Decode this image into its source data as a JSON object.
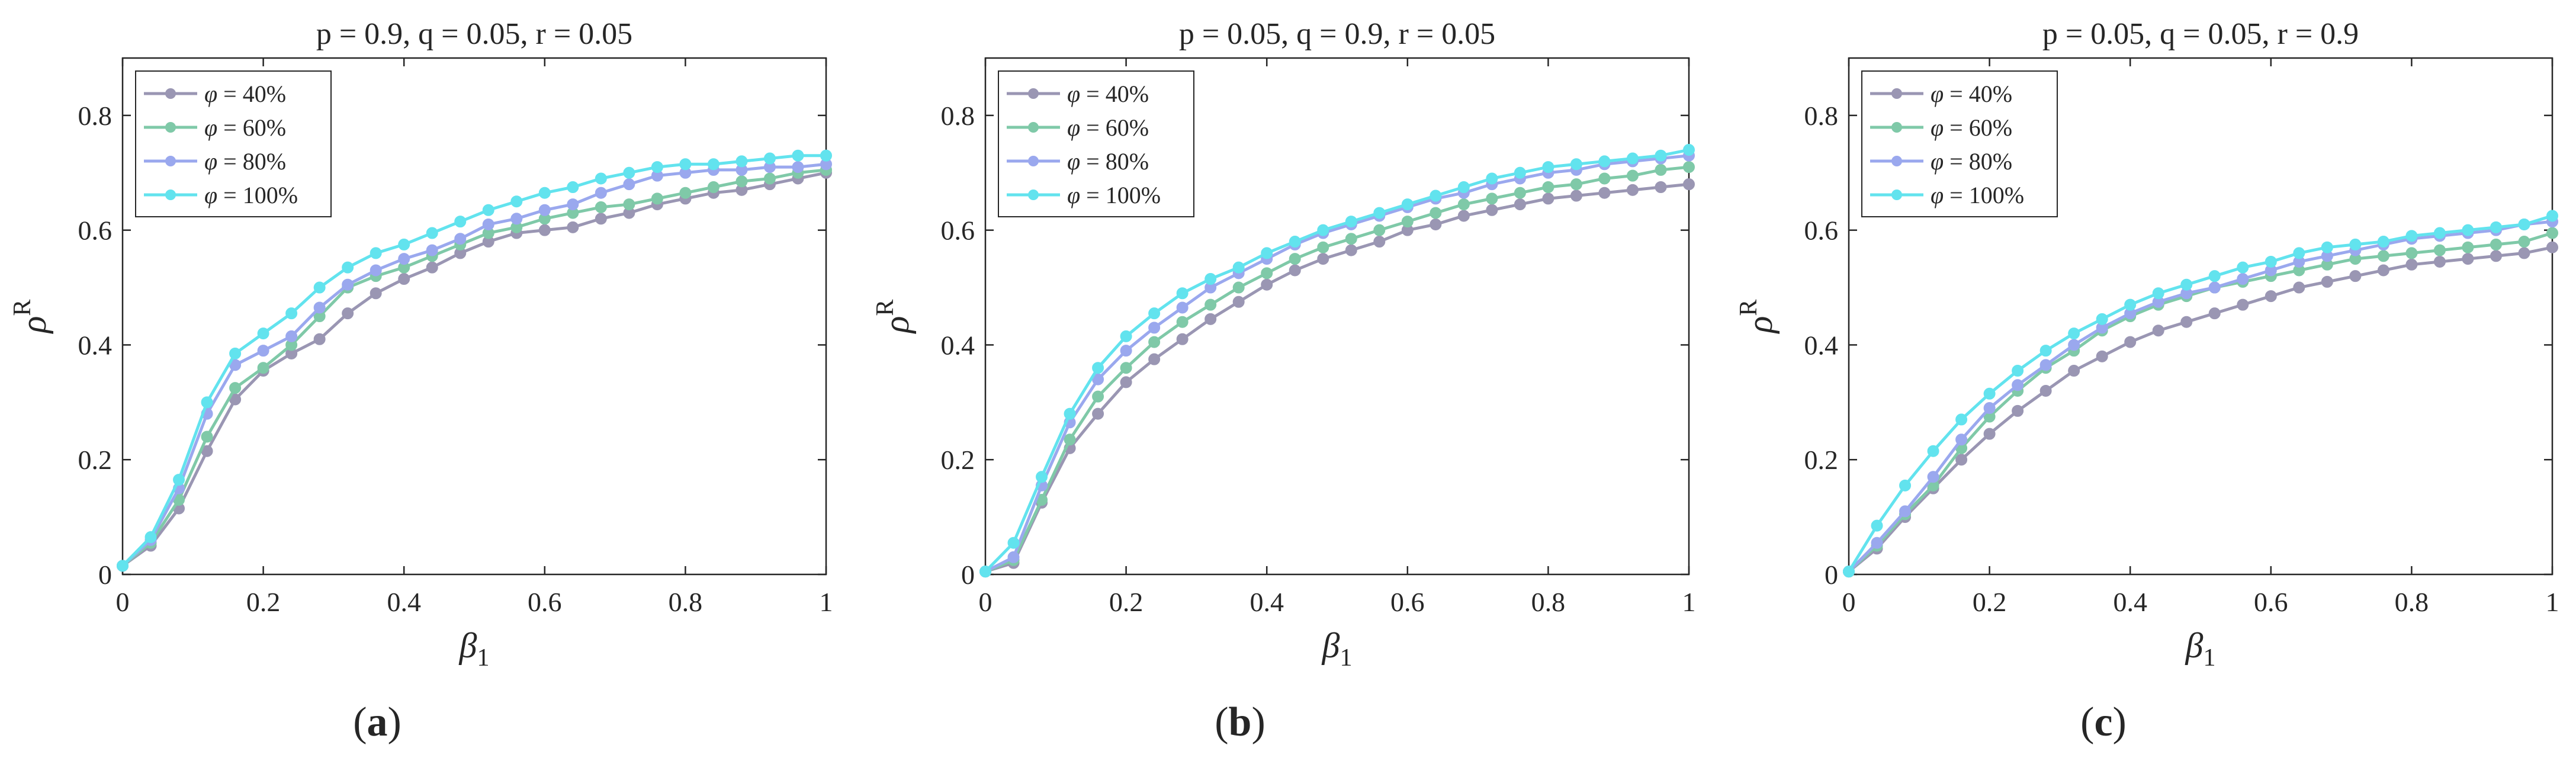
{
  "chart_data": [
    {
      "type": "line",
      "panel_label": "(a)",
      "title": "p = 0.9, q = 0.05, r = 0.05",
      "xlabel": "β1",
      "ylabel": "ρR",
      "xlim": [
        0,
        1
      ],
      "ylim": [
        0,
        0.9
      ],
      "xticks": [
        "0",
        "0.2",
        "0.4",
        "0.6",
        "0.8",
        "1"
      ],
      "yticks": [
        "0",
        "0.2",
        "0.4",
        "0.6",
        "0.8"
      ],
      "legend_position": "top-left",
      "x": [
        0,
        0.04,
        0.08,
        0.12,
        0.16,
        0.2,
        0.24,
        0.28,
        0.32,
        0.36,
        0.4,
        0.44,
        0.48,
        0.52,
        0.56,
        0.6,
        0.64,
        0.68,
        0.72,
        0.76,
        0.8,
        0.84,
        0.88,
        0.92,
        0.96,
        1
      ],
      "series": [
        {
          "name": "φ = 40%",
          "values": [
            0.015,
            0.05,
            0.115,
            0.215,
            0.305,
            0.355,
            0.385,
            0.41,
            0.455,
            0.49,
            0.515,
            0.535,
            0.56,
            0.58,
            0.595,
            0.6,
            0.605,
            0.62,
            0.63,
            0.645,
            0.655,
            0.665,
            0.67,
            0.68,
            0.69,
            0.7
          ]
        },
        {
          "name": "φ = 60%",
          "values": [
            0.015,
            0.055,
            0.13,
            0.24,
            0.325,
            0.36,
            0.4,
            0.45,
            0.5,
            0.52,
            0.535,
            0.555,
            0.575,
            0.595,
            0.605,
            0.62,
            0.63,
            0.64,
            0.645,
            0.655,
            0.665,
            0.675,
            0.685,
            0.69,
            0.7,
            0.705
          ]
        },
        {
          "name": "φ = 80%",
          "values": [
            0.015,
            0.06,
            0.15,
            0.28,
            0.365,
            0.39,
            0.415,
            0.465,
            0.505,
            0.53,
            0.55,
            0.565,
            0.585,
            0.61,
            0.62,
            0.635,
            0.645,
            0.665,
            0.68,
            0.695,
            0.7,
            0.705,
            0.705,
            0.71,
            0.71,
            0.715
          ]
        },
        {
          "name": "φ = 100%",
          "values": [
            0.015,
            0.065,
            0.165,
            0.3,
            0.385,
            0.42,
            0.455,
            0.5,
            0.535,
            0.56,
            0.575,
            0.595,
            0.615,
            0.635,
            0.65,
            0.665,
            0.675,
            0.69,
            0.7,
            0.71,
            0.715,
            0.715,
            0.72,
            0.725,
            0.73,
            0.73
          ]
        }
      ]
    },
    {
      "type": "line",
      "panel_label": "(b)",
      "title": "p = 0.05, q = 0.9, r = 0.05",
      "xlabel": "β1",
      "ylabel": "ρR",
      "xlim": [
        0,
        1
      ],
      "ylim": [
        0,
        0.9
      ],
      "xticks": [
        "0",
        "0.2",
        "0.4",
        "0.6",
        "0.8",
        "1"
      ],
      "yticks": [
        "0",
        "0.2",
        "0.4",
        "0.6",
        "0.8"
      ],
      "legend_position": "top-left",
      "x": [
        0,
        0.04,
        0.08,
        0.12,
        0.16,
        0.2,
        0.24,
        0.28,
        0.32,
        0.36,
        0.4,
        0.44,
        0.48,
        0.52,
        0.56,
        0.6,
        0.64,
        0.68,
        0.72,
        0.76,
        0.8,
        0.84,
        0.88,
        0.92,
        0.96,
        1
      ],
      "series": [
        {
          "name": "φ = 40%",
          "values": [
            0.005,
            0.02,
            0.125,
            0.22,
            0.28,
            0.335,
            0.375,
            0.41,
            0.445,
            0.475,
            0.505,
            0.53,
            0.55,
            0.565,
            0.58,
            0.6,
            0.61,
            0.625,
            0.635,
            0.645,
            0.655,
            0.66,
            0.665,
            0.67,
            0.675,
            0.68
          ]
        },
        {
          "name": "φ = 60%",
          "values": [
            0.005,
            0.025,
            0.13,
            0.235,
            0.31,
            0.36,
            0.405,
            0.44,
            0.47,
            0.5,
            0.525,
            0.55,
            0.57,
            0.585,
            0.6,
            0.615,
            0.63,
            0.645,
            0.655,
            0.665,
            0.675,
            0.68,
            0.69,
            0.695,
            0.705,
            0.71
          ]
        },
        {
          "name": "φ = 80%",
          "values": [
            0.005,
            0.03,
            0.155,
            0.265,
            0.34,
            0.39,
            0.43,
            0.465,
            0.5,
            0.525,
            0.55,
            0.575,
            0.595,
            0.61,
            0.625,
            0.64,
            0.655,
            0.665,
            0.68,
            0.69,
            0.7,
            0.705,
            0.715,
            0.72,
            0.725,
            0.73
          ]
        },
        {
          "name": "φ = 100%",
          "values": [
            0.005,
            0.055,
            0.17,
            0.28,
            0.36,
            0.415,
            0.455,
            0.49,
            0.515,
            0.535,
            0.56,
            0.58,
            0.6,
            0.615,
            0.63,
            0.645,
            0.66,
            0.675,
            0.69,
            0.7,
            0.71,
            0.715,
            0.72,
            0.725,
            0.73,
            0.74
          ]
        }
      ]
    },
    {
      "type": "line",
      "panel_label": "(c)",
      "title": "p = 0.05, q = 0.05, r = 0.9",
      "xlabel": "β1",
      "ylabel": "ρR",
      "xlim": [
        0,
        1
      ],
      "ylim": [
        0,
        0.9
      ],
      "xticks": [
        "0",
        "0.2",
        "0.4",
        "0.6",
        "0.8",
        "1"
      ],
      "yticks": [
        "0",
        "0.2",
        "0.4",
        "0.6",
        "0.8"
      ],
      "legend_position": "top-left",
      "x": [
        0,
        0.04,
        0.08,
        0.12,
        0.16,
        0.2,
        0.24,
        0.28,
        0.32,
        0.36,
        0.4,
        0.44,
        0.48,
        0.52,
        0.56,
        0.6,
        0.64,
        0.68,
        0.72,
        0.76,
        0.8,
        0.84,
        0.88,
        0.92,
        0.96,
        1
      ],
      "series": [
        {
          "name": "φ = 40%",
          "values": [
            0.005,
            0.045,
            0.1,
            0.15,
            0.2,
            0.245,
            0.285,
            0.32,
            0.355,
            0.38,
            0.405,
            0.425,
            0.44,
            0.455,
            0.47,
            0.485,
            0.5,
            0.51,
            0.52,
            0.53,
            0.54,
            0.545,
            0.55,
            0.555,
            0.56,
            0.57
          ]
        },
        {
          "name": "φ = 60%",
          "values": [
            0.005,
            0.05,
            0.105,
            0.155,
            0.22,
            0.275,
            0.32,
            0.36,
            0.39,
            0.425,
            0.45,
            0.47,
            0.485,
            0.5,
            0.51,
            0.52,
            0.53,
            0.54,
            0.55,
            0.555,
            0.56,
            0.565,
            0.57,
            0.575,
            0.58,
            0.595
          ]
        },
        {
          "name": "φ = 80%",
          "values": [
            0.005,
            0.055,
            0.11,
            0.17,
            0.235,
            0.29,
            0.33,
            0.365,
            0.4,
            0.43,
            0.455,
            0.475,
            0.49,
            0.5,
            0.515,
            0.53,
            0.545,
            0.555,
            0.565,
            0.575,
            0.585,
            0.59,
            0.595,
            0.6,
            0.61,
            0.615
          ]
        },
        {
          "name": "φ = 100%",
          "values": [
            0.005,
            0.085,
            0.155,
            0.215,
            0.27,
            0.315,
            0.355,
            0.39,
            0.42,
            0.445,
            0.47,
            0.49,
            0.505,
            0.52,
            0.535,
            0.545,
            0.56,
            0.57,
            0.575,
            0.58,
            0.59,
            0.595,
            0.6,
            0.605,
            0.61,
            0.625
          ]
        }
      ]
    }
  ],
  "series_colors": [
    "#9a96b3",
    "#7fc9a8",
    "#9aa8ee",
    "#62e3ee"
  ]
}
